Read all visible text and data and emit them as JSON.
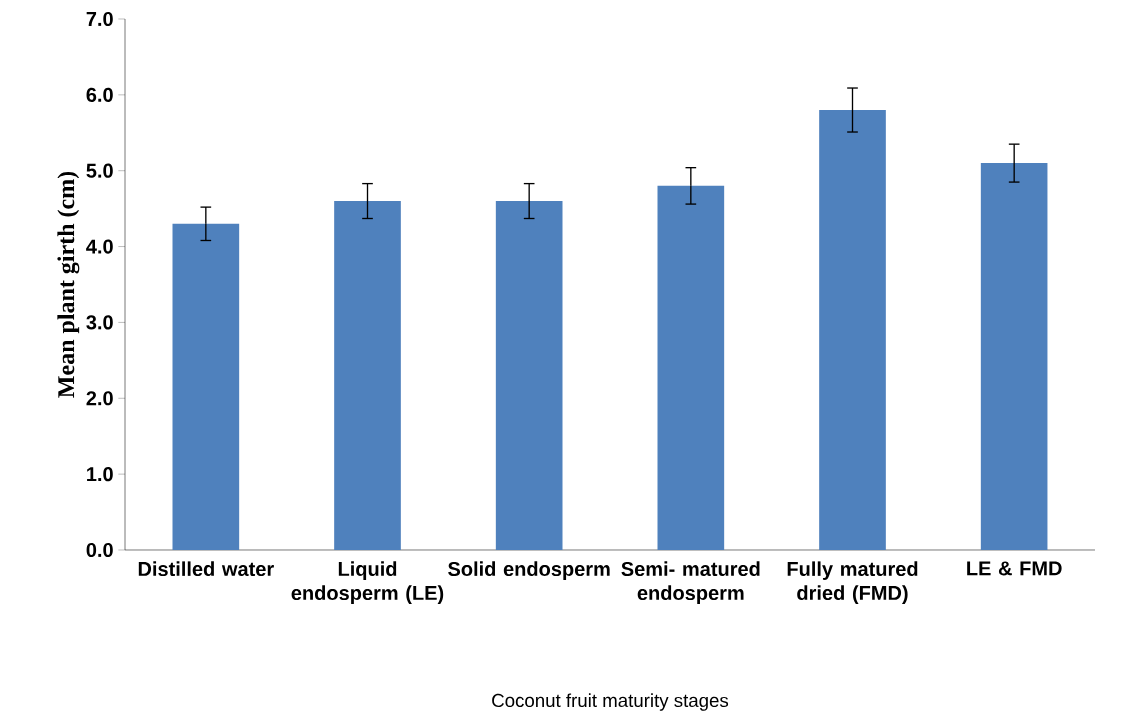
{
  "chart_data": {
    "type": "bar",
    "xlabel": "Coconut fruit maturity stages",
    "ylabel": "Mean plant girth (cm)",
    "categories": [
      "Distilled water",
      "Liquid endosperm (LE)",
      "Solid endosperm",
      "Semi- matured endosperm",
      "Fully matured dried (FMD)",
      "LE & FMD"
    ],
    "values": [
      4.3,
      4.6,
      4.6,
      4.8,
      5.8,
      5.1
    ],
    "errors": [
      0.22,
      0.23,
      0.23,
      0.24,
      0.29,
      0.25
    ],
    "color": "#4f81bd",
    "ylim": [
      0,
      7
    ],
    "yticks": [
      {
        "value": 0,
        "label": "0.0"
      },
      {
        "value": 1,
        "label": "1.0"
      },
      {
        "value": 2,
        "label": "2.0"
      },
      {
        "value": 3,
        "label": "3.0"
      },
      {
        "value": 4,
        "label": "4.0"
      },
      {
        "value": 5,
        "label": "5.0"
      },
      {
        "value": 6,
        "label": "6.0"
      },
      {
        "value": 7,
        "label": "7.0"
      }
    ],
    "grid": false
  }
}
